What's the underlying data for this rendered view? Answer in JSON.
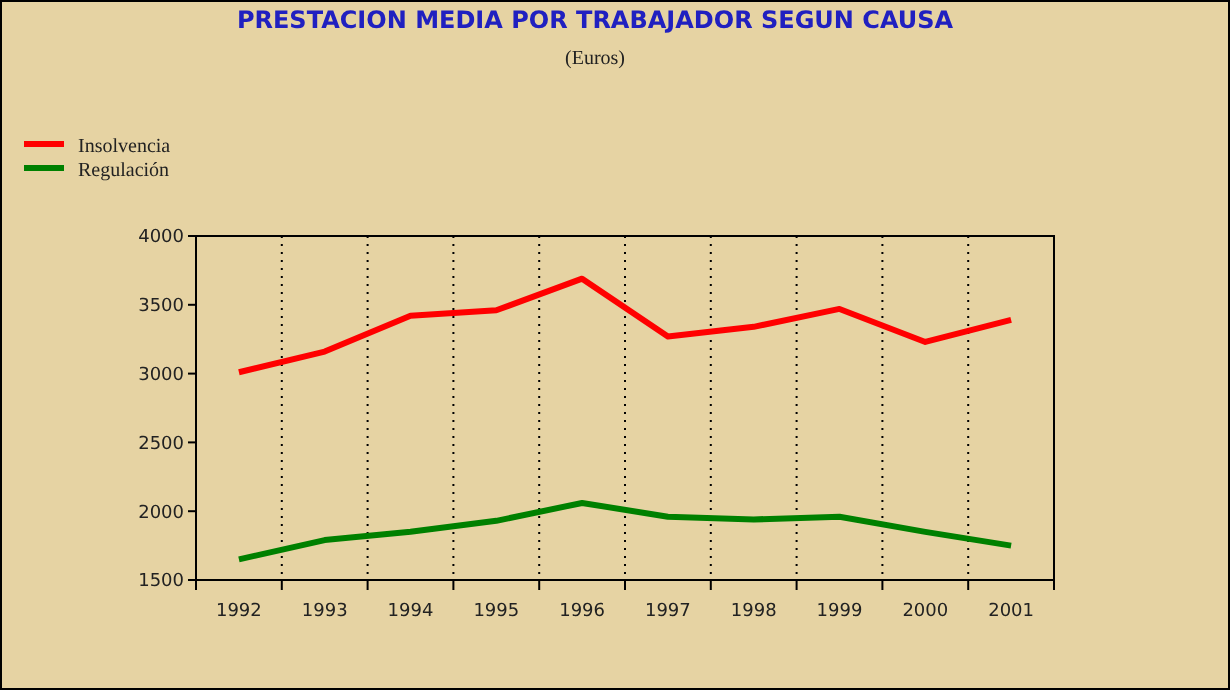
{
  "chart_data": {
    "type": "line",
    "title": "PRESTACION MEDIA POR TRABAJADOR SEGUN CAUSA",
    "subtitle": "(Euros)",
    "categories": [
      "1992",
      "1993",
      "1994",
      "1995",
      "1996",
      "1997",
      "1998",
      "1999",
      "2000",
      "2001"
    ],
    "series": [
      {
        "name": "Insolvencia",
        "color": "#ff0000",
        "values": [
          3010,
          3160,
          3420,
          3460,
          3690,
          3270,
          3340,
          3470,
          3230,
          3390
        ]
      },
      {
        "name": "Regulación",
        "color": "#008000",
        "values": [
          1650,
          1790,
          1850,
          1930,
          2060,
          1960,
          1940,
          1960,
          1850,
          1750
        ]
      }
    ],
    "ylim": [
      1500,
      4000
    ],
    "yticks": [
      1500,
      2000,
      2500,
      3000,
      3500,
      4000
    ],
    "grid": "x",
    "legend": "top left",
    "marker": "none",
    "line_style": "solid"
  }
}
